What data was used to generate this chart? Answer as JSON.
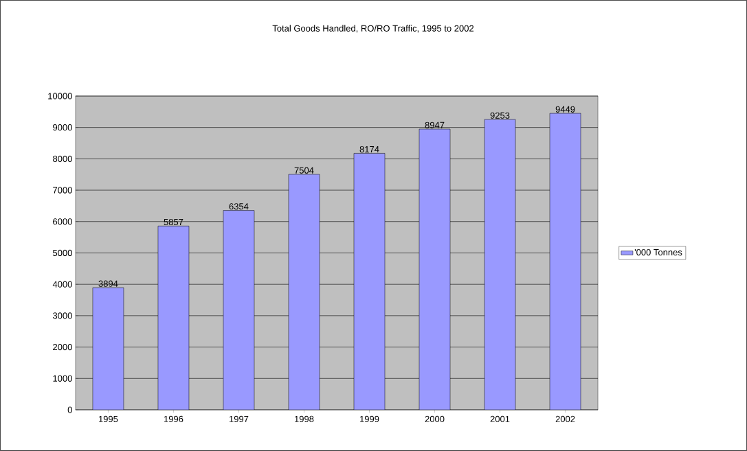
{
  "chart_data": {
    "type": "bar",
    "title": "Total Goods Handled, RO/RO Traffic, 1995 to 2002",
    "categories": [
      "1995",
      "1996",
      "1997",
      "1998",
      "1999",
      "2000",
      "2001",
      "2002"
    ],
    "series": [
      {
        "name": "'000 Tonnes",
        "color": "#9999ff",
        "values": [
          3894,
          5857,
          6354,
          7504,
          8174,
          8947,
          9253,
          9449
        ]
      }
    ],
    "ylim": [
      0,
      10000
    ],
    "yticks": [
      0,
      1000,
      2000,
      3000,
      4000,
      5000,
      6000,
      7000,
      8000,
      9000,
      10000
    ],
    "grid": "y",
    "legend": "right",
    "data_labels": true
  }
}
